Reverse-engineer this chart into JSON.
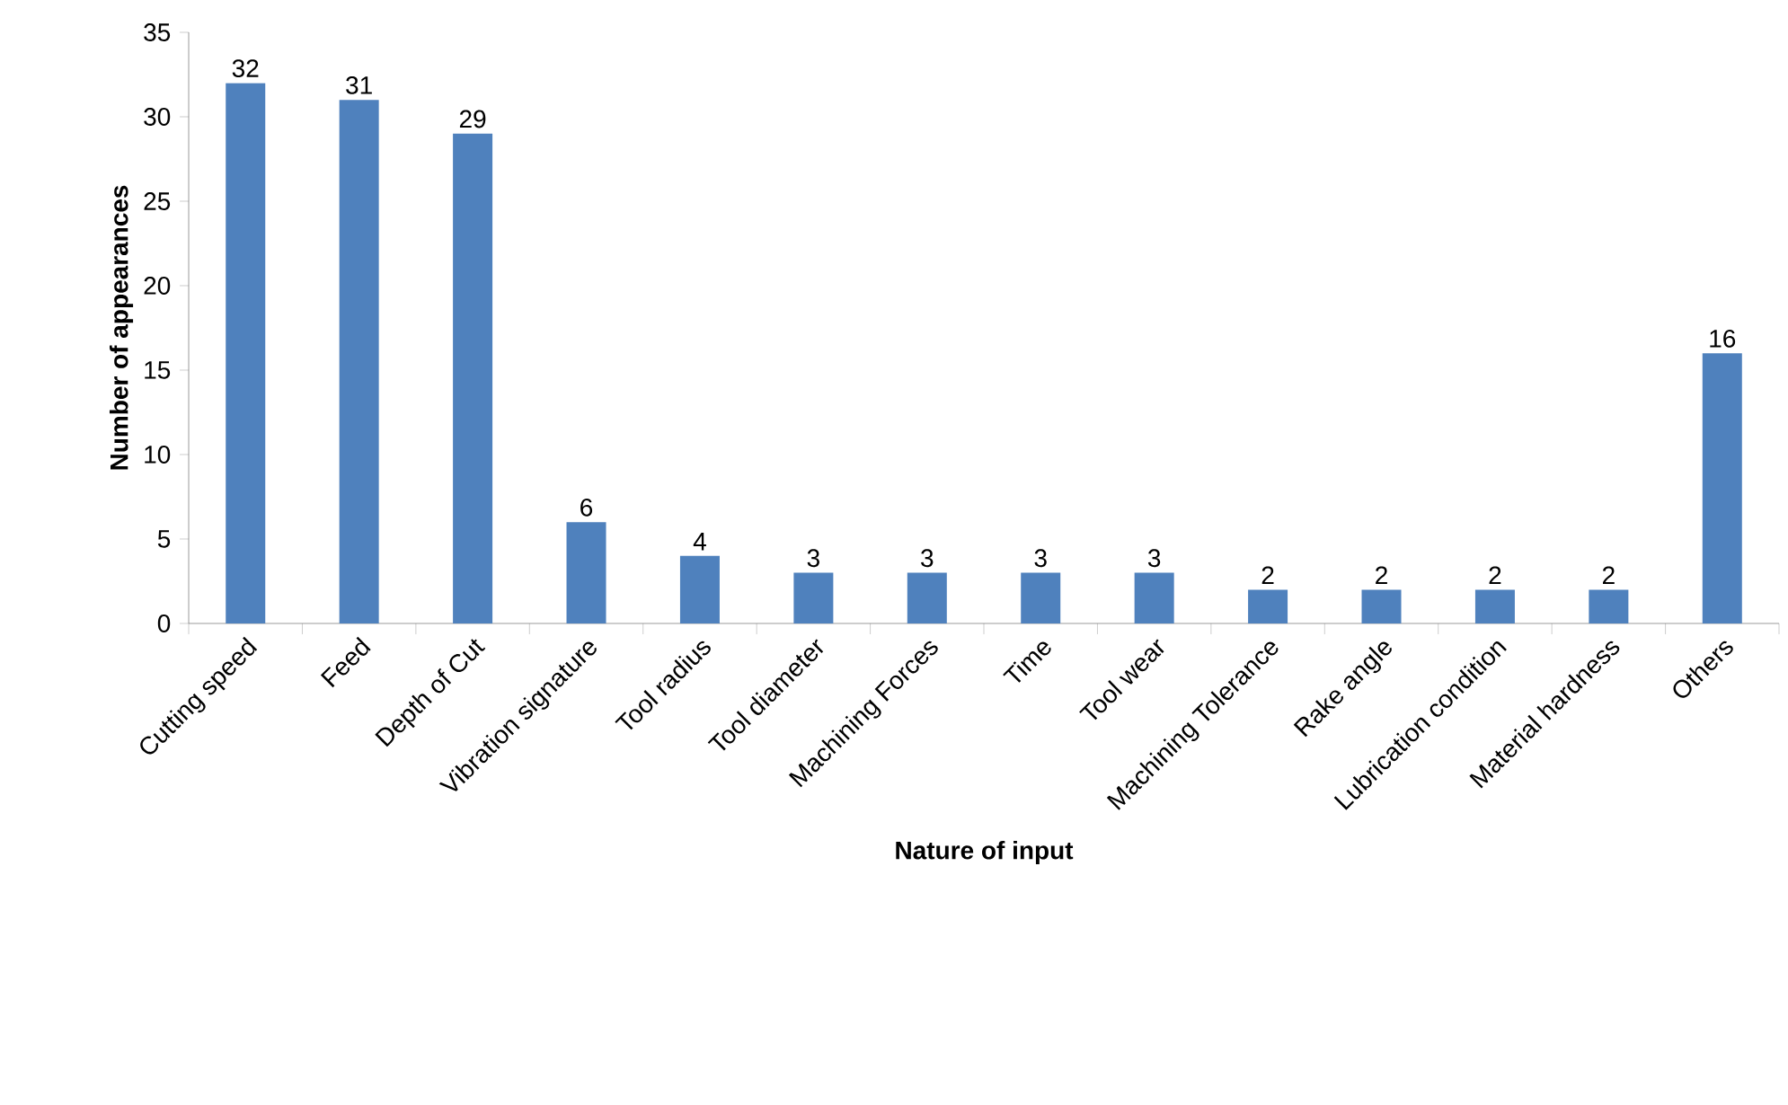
{
  "chart_data": {
    "type": "bar",
    "xlabel": "Nature of input",
    "ylabel": "Number of appearances",
    "categories": [
      "Cutting speed",
      "Feed",
      "Depth of Cut",
      "Vibration signature",
      "Tool radius",
      "Tool diameter",
      "Machining Forces",
      "Time",
      "Tool wear",
      "Machining Tolerance",
      "Rake angle",
      "Lubrication condition",
      "Material hardness",
      "Others"
    ],
    "values": [
      32,
      31,
      29,
      6,
      4,
      3,
      3,
      3,
      3,
      2,
      2,
      2,
      2,
      16
    ],
    "color": "#4f81bd",
    "ylim": [
      0,
      35
    ],
    "yticks": [
      0,
      5,
      10,
      15,
      20,
      25,
      30,
      35
    ],
    "data_labels": true
  }
}
